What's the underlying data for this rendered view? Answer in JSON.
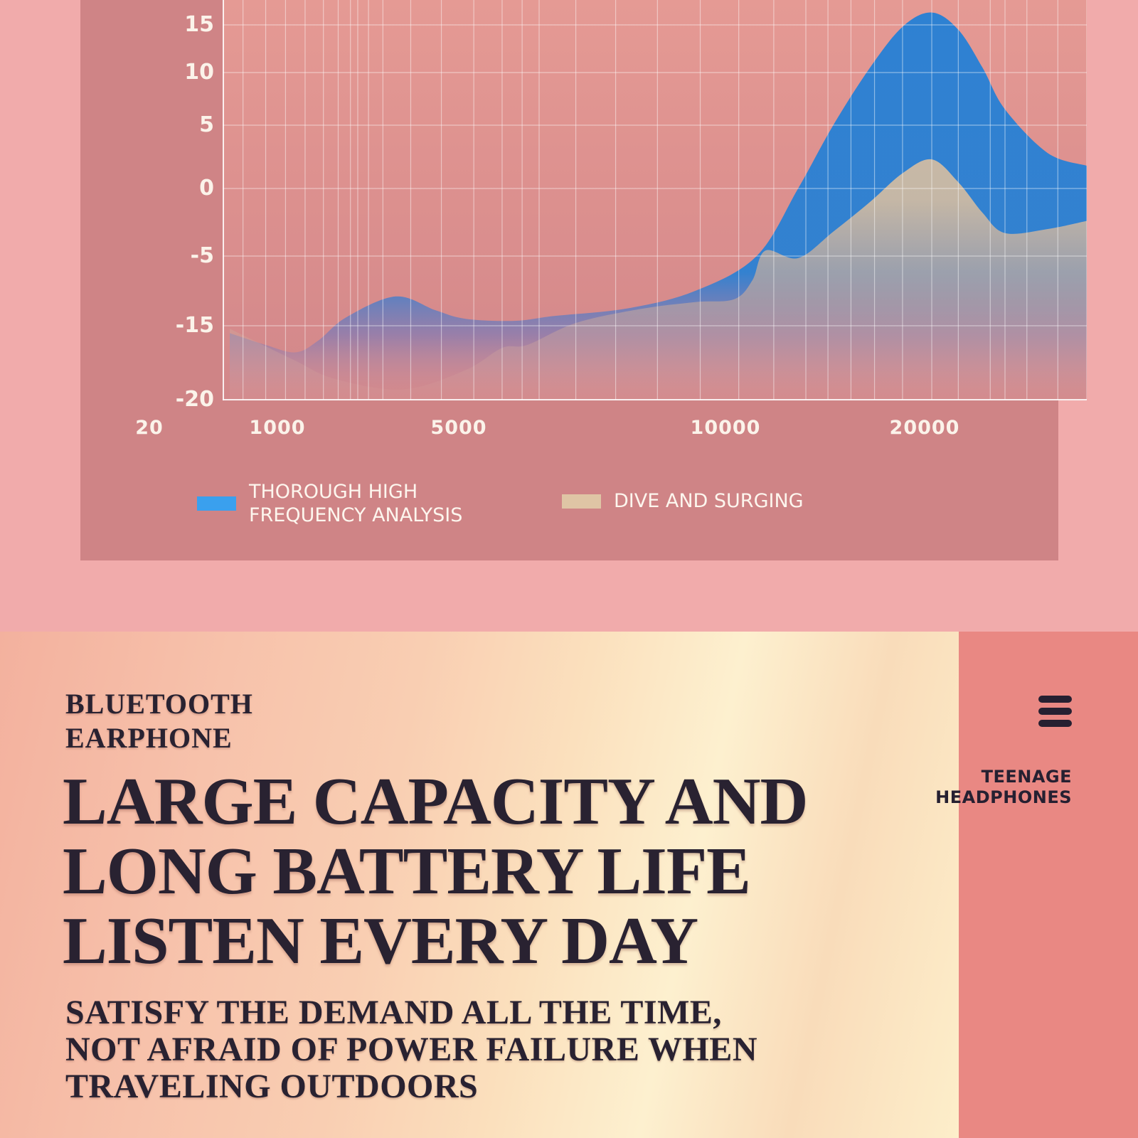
{
  "colors": {
    "page_bg": "#f1abab",
    "chart_panel_bg": "#cf8486",
    "plot_bg_top": "#e59a94",
    "plot_bg_bottom": "#d2878a",
    "grid_line": "rgba(255,255,255,0.45)",
    "axis_text": "#fbf3ea",
    "series_blue": "#2e81d2",
    "series_tan": "#dcc3a6",
    "legend_blue_swatch": "#3aa0ee",
    "legend_tan_swatch": "#dfc5a5",
    "hero_text": "#292231",
    "sidebar_bg": "#e98883",
    "menu_icon": "#262031"
  },
  "chart_data": {
    "type": "area",
    "title": "",
    "xlabel": "",
    "ylabel": "",
    "x_scale": "log",
    "xlim": [
      20,
      24000
    ],
    "ylim": [
      -20,
      17
    ],
    "grid": true,
    "legend_position": "bottom",
    "x_ticks": [
      20,
      1000,
      5000,
      10000,
      20000
    ],
    "y_ticks": [
      15,
      10,
      5,
      0,
      -5,
      -15,
      -20
    ],
    "series": [
      {
        "name": "THOROUGH HIGH FREQUENCY ANALYSIS",
        "color": "#2e81d2",
        "swatch_color": "#3aa0ee",
        "points": [
          [
            20,
            -15.5
          ],
          [
            60,
            -16.3
          ],
          [
            150,
            -16.8
          ],
          [
            300,
            -16
          ],
          [
            700,
            -13.8
          ],
          [
            1400,
            -10.8
          ],
          [
            2000,
            -12.8
          ],
          [
            2600,
            -14
          ],
          [
            4000,
            -14.3
          ],
          [
            5200,
            -13.6
          ],
          [
            6300,
            -12.5
          ],
          [
            7500,
            -10
          ],
          [
            8800,
            -5
          ],
          [
            9800,
            0
          ],
          [
            11000,
            5
          ],
          [
            12500,
            10.5
          ],
          [
            14000,
            14.8
          ],
          [
            15500,
            16.3
          ],
          [
            17000,
            14.5
          ],
          [
            18500,
            10.5
          ],
          [
            20000,
            6.5
          ],
          [
            22000,
            2.8
          ],
          [
            24000,
            1.8
          ]
        ]
      },
      {
        "name": "DIVE AND SURGING",
        "color": "#dcc3a6",
        "swatch_color": "#dfc5a5",
        "points": [
          [
            20,
            -15.2
          ],
          [
            140,
            -17.3
          ],
          [
            500,
            -18.6
          ],
          [
            1500,
            -19.3
          ],
          [
            2600,
            -18
          ],
          [
            3600,
            -16.5
          ],
          [
            4500,
            -16.3
          ],
          [
            5500,
            -14.6
          ],
          [
            6500,
            -12.6
          ],
          [
            7500,
            -11.6
          ],
          [
            8300,
            -11.2
          ],
          [
            8700,
            -8.5
          ],
          [
            9000,
            -4.6
          ],
          [
            9800,
            -5.3
          ],
          [
            11000,
            -3.2
          ],
          [
            12500,
            -1
          ],
          [
            14000,
            1.2
          ],
          [
            15500,
            2.3
          ],
          [
            17000,
            0.5
          ],
          [
            18500,
            -1.8
          ],
          [
            20000,
            -3.3
          ],
          [
            22000,
            -3
          ],
          [
            24000,
            -2.4
          ]
        ]
      }
    ]
  },
  "hero": {
    "eyebrow_line1": "BLUETOOTH",
    "eyebrow_line2": "EARPHONE",
    "headline_line1": "LARGE CAPACITY AND",
    "headline_line2": "LONG BATTERY LIFE",
    "headline_line3": "LISTEN EVERY DAY",
    "subtitle_line1": "SATISFY THE DEMAND ALL THE TIME,",
    "subtitle_line2": "NOT AFRAID OF POWER FAILURE WHEN",
    "subtitle_line3": "TRAVELING OUTDOORS"
  },
  "sidebar": {
    "menu_icon": "hamburger-icon",
    "brand_line1": "TEENAGE",
    "brand_line2": "HEADPHONES"
  }
}
